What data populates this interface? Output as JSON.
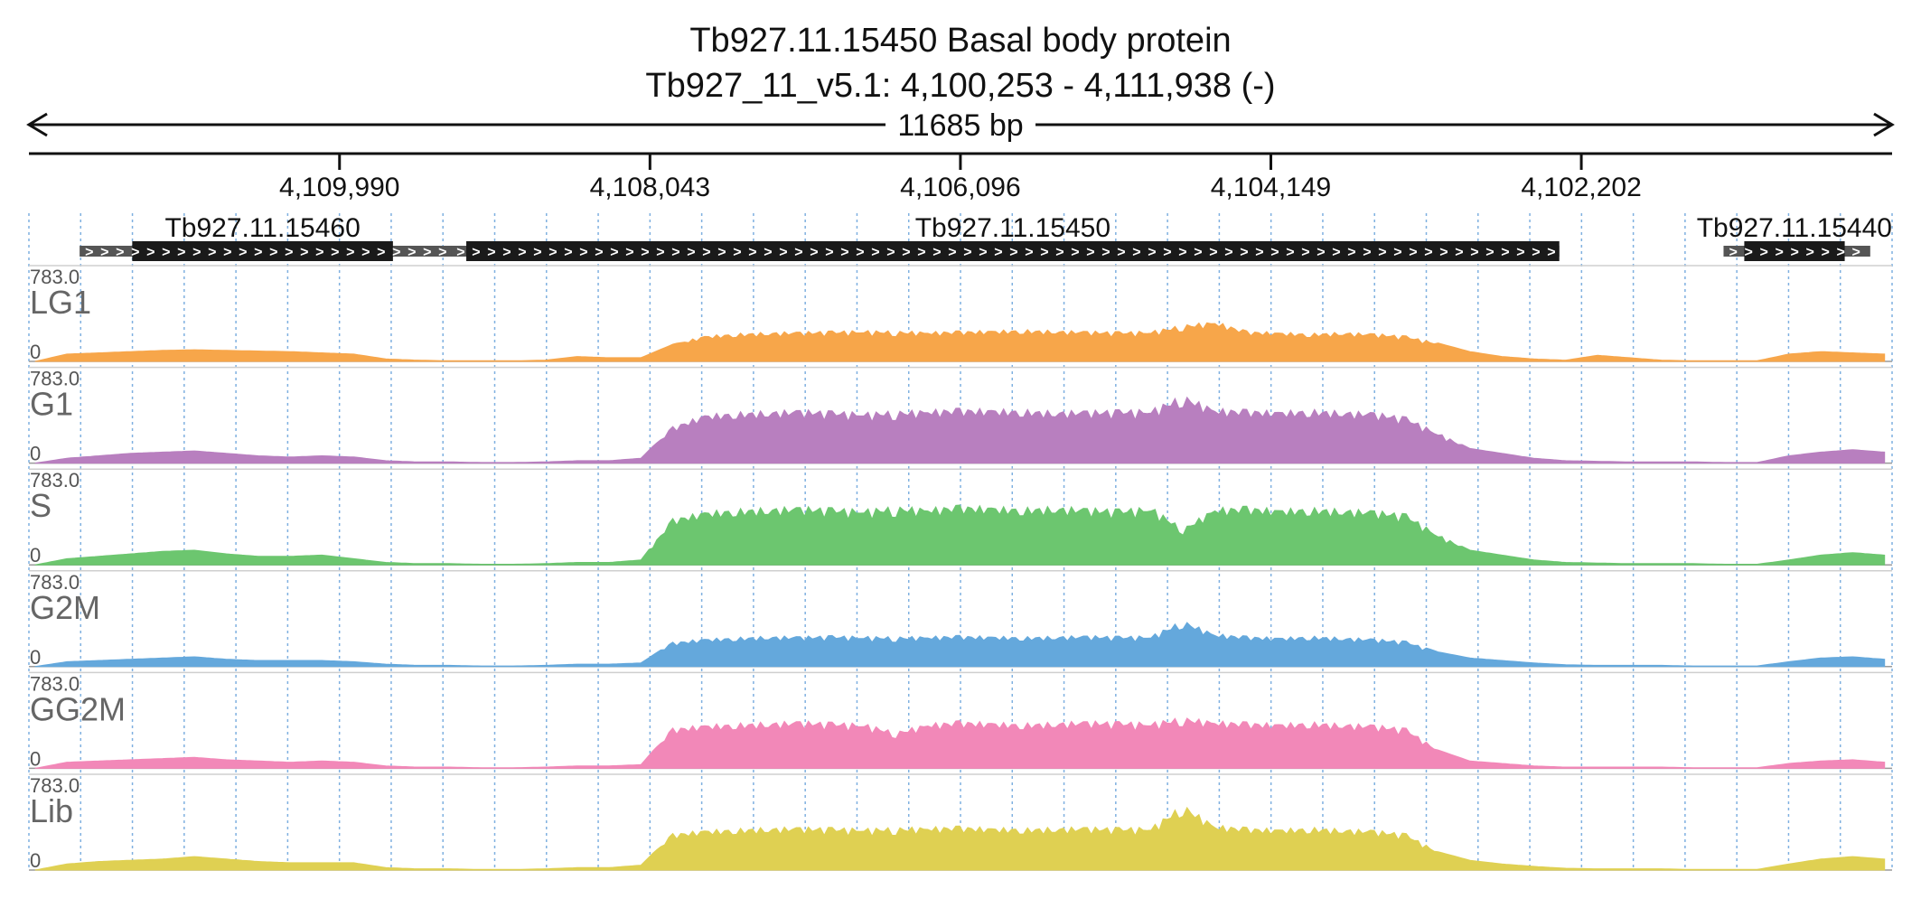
{
  "header": {
    "title": "Tb927.11.15450  Basal body protein",
    "location": "Tb927_11_v5.1: 4,100,253 - 4,111,938 (-)",
    "span_label": "11685 bp"
  },
  "chart_data": {
    "type": "area",
    "region": {
      "chrom": "Tb927_11_v5.1",
      "start": 4100253,
      "end": 4111938,
      "strand": "-"
    },
    "x_ticks": [
      {
        "value": 4109990,
        "label": "4,109,990"
      },
      {
        "value": 4108043,
        "label": "4,108,043"
      },
      {
        "value": 4106096,
        "label": "4,106,096"
      },
      {
        "value": 4104149,
        "label": "4,104,149"
      },
      {
        "value": 4102202,
        "label": "4,102,202"
      }
    ],
    "genes": [
      {
        "name": "Tb927.11.15460",
        "start": 4109280,
        "end": 4111620,
        "cds_start": 4109655,
        "cds_end": 4111290
      },
      {
        "name": "Tb927.11.15450",
        "start": 4102340,
        "end": 4109290,
        "cds_start": 4102340,
        "cds_end": 4109195
      },
      {
        "name": "Tb927.11.15440",
        "start": 4100390,
        "end": 4101310,
        "cds_start": 4100550,
        "cds_end": 4101180
      }
    ],
    "ylim": [
      0,
      783.0
    ],
    "y_max_label": "783.0",
    "y_min_label": "0",
    "series": [
      {
        "name": "LG1",
        "color": "#f7a64a"
      },
      {
        "name": "G1",
        "color": "#b87fbf"
      },
      {
        "name": "S",
        "color": "#6cc66f"
      },
      {
        "name": "G2M",
        "color": "#64a8dc"
      },
      {
        "name": "GG2M",
        "color": "#f288b8"
      },
      {
        "name": "Lib",
        "color": "#dfd052"
      }
    ],
    "profile": {
      "note_units": "coverage in reads; x in genomic coordinate",
      "x": [
        4111900,
        4111700,
        4111500,
        4111300,
        4111100,
        4110900,
        4110700,
        4110500,
        4110300,
        4110100,
        4109900,
        4109700,
        4109500,
        4109300,
        4109100,
        4108900,
        4108700,
        4108500,
        4108300,
        4108100,
        4107900,
        4107700,
        4107500,
        4107300,
        4107100,
        4106900,
        4106700,
        4106500,
        4106300,
        4106100,
        4105900,
        4105700,
        4105500,
        4105300,
        4105100,
        4104900,
        4104700,
        4104500,
        4104300,
        4104100,
        4103900,
        4103700,
        4103500,
        4103300,
        4103100,
        4102900,
        4102700,
        4102500,
        4102300,
        4102100,
        4101900,
        4101700,
        4101500,
        4101300,
        4101100,
        4100900,
        4100700,
        4100500,
        4100300
      ],
      "LG1": [
        0,
        60,
        70,
        80,
        90,
        95,
        90,
        85,
        80,
        70,
        60,
        20,
        10,
        5,
        5,
        5,
        10,
        40,
        30,
        30,
        140,
        210,
        230,
        240,
        245,
        250,
        255,
        250,
        245,
        250,
        255,
        260,
        255,
        250,
        245,
        250,
        300,
        330,
        250,
        240,
        230,
        240,
        230,
        210,
        150,
        80,
        40,
        20,
        10,
        50,
        30,
        10,
        5,
        5,
        5,
        60,
        80,
        70,
        60
      ],
      "G1": [
        0,
        40,
        60,
        80,
        90,
        100,
        80,
        60,
        50,
        60,
        50,
        20,
        10,
        10,
        5,
        5,
        10,
        20,
        20,
        40,
        300,
        400,
        420,
        430,
        440,
        430,
        420,
        430,
        440,
        450,
        445,
        440,
        430,
        435,
        440,
        445,
        560,
        450,
        440,
        430,
        440,
        430,
        420,
        380,
        250,
        120,
        80,
        40,
        20,
        15,
        10,
        10,
        10,
        5,
        5,
        60,
        90,
        110,
        90
      ],
      "S": [
        0,
        50,
        70,
        90,
        110,
        120,
        90,
        70,
        70,
        80,
        50,
        20,
        10,
        10,
        5,
        5,
        10,
        20,
        20,
        40,
        380,
        440,
        460,
        470,
        480,
        470,
        460,
        480,
        470,
        490,
        480,
        470,
        480,
        470,
        460,
        480,
        300,
        470,
        480,
        460,
        470,
        460,
        450,
        420,
        250,
        120,
        80,
        40,
        20,
        15,
        10,
        10,
        10,
        5,
        5,
        40,
        80,
        100,
        80
      ],
      "G2M": [
        0,
        40,
        50,
        60,
        70,
        80,
        60,
        50,
        50,
        50,
        40,
        20,
        10,
        10,
        5,
        5,
        10,
        20,
        20,
        30,
        200,
        230,
        240,
        250,
        250,
        255,
        250,
        245,
        250,
        255,
        250,
        245,
        250,
        255,
        250,
        255,
        380,
        270,
        250,
        240,
        250,
        240,
        230,
        210,
        120,
        70,
        50,
        30,
        15,
        10,
        10,
        10,
        5,
        5,
        5,
        40,
        70,
        80,
        60
      ],
      "GG2M": [
        0,
        50,
        60,
        70,
        80,
        90,
        70,
        60,
        50,
        60,
        50,
        20,
        10,
        10,
        5,
        5,
        10,
        20,
        20,
        30,
        330,
        360,
        370,
        380,
        390,
        380,
        370,
        300,
        370,
        390,
        380,
        370,
        380,
        390,
        385,
        380,
        420,
        390,
        380,
        370,
        380,
        370,
        360,
        330,
        150,
        60,
        40,
        20,
        10,
        10,
        10,
        10,
        5,
        5,
        5,
        40,
        60,
        70,
        50
      ],
      "Lib": [
        0,
        50,
        70,
        80,
        90,
        110,
        90,
        70,
        60,
        60,
        60,
        20,
        10,
        10,
        5,
        5,
        10,
        20,
        20,
        40,
        300,
        330,
        340,
        350,
        355,
        350,
        345,
        350,
        355,
        360,
        350,
        345,
        350,
        355,
        350,
        355,
        540,
        370,
        350,
        340,
        350,
        340,
        330,
        300,
        150,
        80,
        50,
        30,
        15,
        10,
        10,
        10,
        5,
        5,
        5,
        50,
        90,
        110,
        90
      ]
    },
    "grid": true,
    "grid_style": "dotted vertical lines"
  }
}
